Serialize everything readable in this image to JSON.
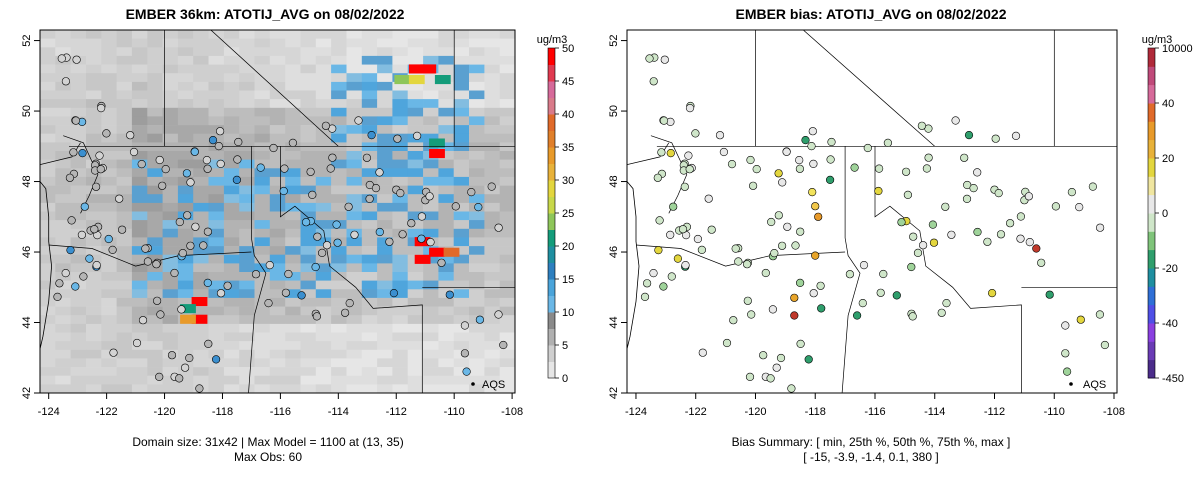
{
  "panels": [
    {
      "id": "left",
      "title": "EMBER 36km: ATOTIJ_AVG on 08/02/2022",
      "footer_line1": "Domain size: 31x42 | Max Model = 1100 at (13, 35)",
      "footer_line2": "Max Obs: 60",
      "legend_label": "AQS",
      "colorbar_unit": "ug/m3",
      "colorbar_ticks": [
        "0",
        "5",
        "10",
        "15",
        "20",
        "25",
        "30",
        "35",
        "40",
        "45",
        "50"
      ]
    },
    {
      "id": "right",
      "title": "EMBER bias: ATOTIJ_AVG on 08/02/2022",
      "footer_line1": "Bias Summary: [ min, 25th %, 50th %, 75th %, max ]",
      "footer_line2": "[ -15,   -3.9,   -1.4,   0.1,   380 ]",
      "legend_label": "AQS",
      "colorbar_unit": "ug/m3",
      "colorbar_ticks": [
        "-450",
        "-40",
        "-20",
        "0",
        "20",
        "40",
        "10000"
      ]
    }
  ],
  "chart_data": [
    {
      "type": "heatmap",
      "title": "EMBER 36km: ATOTIJ_AVG on 08/02/2022",
      "x_ticks": [
        "-124",
        "-122",
        "-120",
        "-118",
        "-116",
        "-114",
        "-112",
        "-110",
        "-108"
      ],
      "y_ticks": [
        "42",
        "44",
        "46",
        "48",
        "50",
        "52"
      ],
      "xlim": [
        -124.3,
        -107.9
      ],
      "ylim": [
        42,
        52.3
      ],
      "colorbar": {
        "unit": "ug/m3",
        "range": [
          0,
          50
        ],
        "ticks": [
          0,
          5,
          10,
          15,
          20,
          25,
          30,
          35,
          40,
          45,
          50
        ]
      },
      "hot_cells": [
        {
          "lon": -111.3,
          "lat": 51.2,
          "value": 50
        },
        {
          "lon": -110.9,
          "lat": 51.2,
          "value": 50
        },
        {
          "lon": -111.8,
          "lat": 50.9,
          "value": 27
        },
        {
          "lon": -111.3,
          "lat": 50.9,
          "value": 30
        },
        {
          "lon": -110.4,
          "lat": 50.9,
          "value": 20
        },
        {
          "lon": -110.6,
          "lat": 48.8,
          "value": 50
        },
        {
          "lon": -110.6,
          "lat": 49.1,
          "value": 20
        },
        {
          "lon": -111.1,
          "lat": 46.3,
          "value": 50
        },
        {
          "lon": -110.6,
          "lat": 46.0,
          "value": 50
        },
        {
          "lon": -111.1,
          "lat": 45.8,
          "value": 50
        },
        {
          "lon": -110.1,
          "lat": 46.0,
          "value": 42
        },
        {
          "lon": -118.8,
          "lat": 44.6,
          "value": 50
        },
        {
          "lon": -118.8,
          "lat": 44.1,
          "value": 50
        },
        {
          "lon": -119.2,
          "lat": 44.1,
          "value": 35
        },
        {
          "lon": -119.2,
          "lat": 44.4,
          "value": 20
        }
      ],
      "legend": [
        "AQS"
      ]
    },
    {
      "type": "scatter",
      "title": "EMBER bias: ATOTIJ_AVG on 08/02/2022",
      "x_ticks": [
        "-124",
        "-122",
        "-120",
        "-118",
        "-116",
        "-114",
        "-112",
        "-110",
        "-108"
      ],
      "y_ticks": [
        "42",
        "44",
        "46",
        "48",
        "50",
        "52"
      ],
      "xlim": [
        -124.3,
        -107.9
      ],
      "ylim": [
        42,
        52.3
      ],
      "colorbar": {
        "unit": "ug/m3",
        "ticks": [
          "-450",
          "-40",
          "-20",
          "0",
          "20",
          "40",
          "10000"
        ]
      },
      "bias_summary": {
        "min": -15,
        "p25": -3.9,
        "p50": -1.4,
        "p75": 0.1,
        "max": 380
      },
      "legend": [
        "AQS"
      ]
    }
  ]
}
